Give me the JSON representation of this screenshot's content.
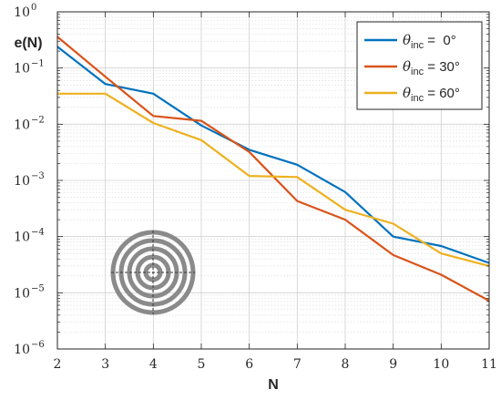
{
  "chart_data": {
    "type": "line",
    "xlabel": "N",
    "ylabel": "e(N)",
    "xlim": [
      2,
      11
    ],
    "ylim": [
      1e-06,
      1
    ],
    "yscale": "log",
    "x_ticks": [
      2,
      3,
      4,
      5,
      6,
      7,
      8,
      9,
      10,
      11
    ],
    "y_tick_base": "10",
    "y_tick_exponents": [
      "−6",
      "−5",
      "−4",
      "−3",
      "−2",
      "−1",
      "0"
    ],
    "grid": true,
    "legend_position": "top-right",
    "x": [
      2,
      3,
      4,
      5,
      6,
      7,
      8,
      9,
      10,
      11
    ],
    "series": [
      {
        "symbol": "θ",
        "subscript": "inc",
        "label_value": " =  0°",
        "color": "#0072BD",
        "values": [
          0.24,
          0.052,
          0.035,
          0.0095,
          0.0035,
          0.0019,
          0.00062,
          0.0001,
          6.8e-05,
          3.4e-05
        ]
      },
      {
        "symbol": "θ",
        "subscript": "inc",
        "label_value": " = 30°",
        "color": "#D95319",
        "values": [
          0.36,
          0.07,
          0.014,
          0.0115,
          0.0032,
          0.00043,
          0.0002,
          4.7e-05,
          2.1e-05,
          7.2e-06
        ]
      },
      {
        "symbol": "θ",
        "subscript": "inc",
        "label_value": " = 60°",
        "color": "#EDB120",
        "values": [
          0.035,
          0.035,
          0.0105,
          0.0052,
          0.0012,
          0.00115,
          0.0003,
          0.00017,
          5e-05,
          3e-05
        ]
      }
    ]
  }
}
